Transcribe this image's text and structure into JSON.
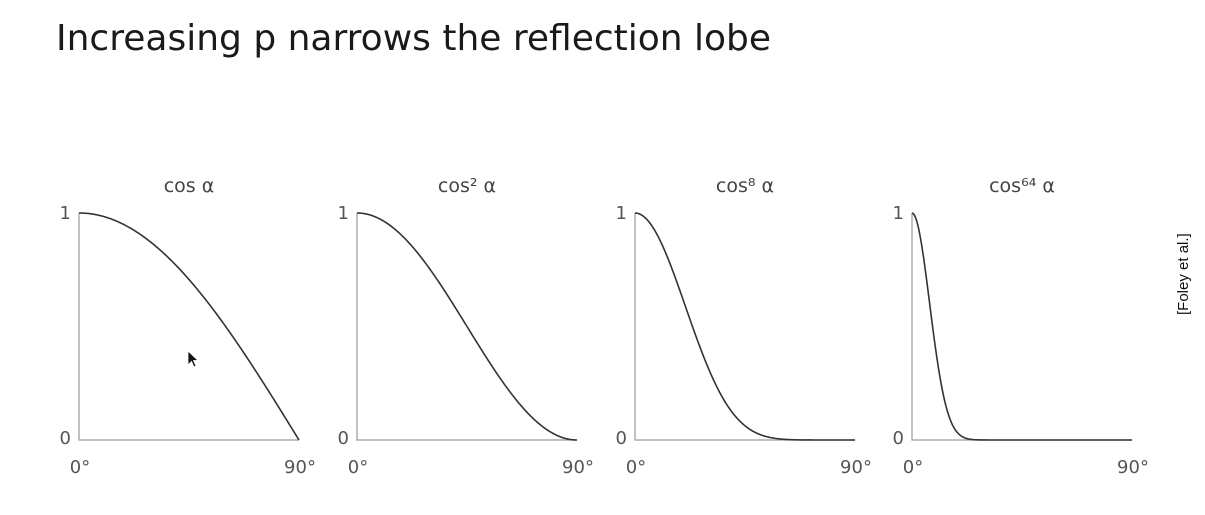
{
  "slide": {
    "title": "Increasing p narrows the reflection lobe",
    "citation": "[Foley et al.]"
  },
  "chart_data": [
    {
      "type": "line",
      "title": "cos α",
      "function": "cos^p(α)",
      "p": 1,
      "x_tick_labels": [
        "0°",
        "90°"
      ],
      "y_tick_labels": [
        "0",
        "1"
      ],
      "xlim": [
        0,
        90
      ],
      "ylim": [
        0,
        1
      ],
      "x": [
        0,
        15,
        30,
        45,
        60,
        75,
        90
      ],
      "y": [
        1.0,
        0.966,
        0.866,
        0.707,
        0.5,
        0.259,
        0.0
      ]
    },
    {
      "type": "line",
      "title": "cos² α",
      "function": "cos^p(α)",
      "p": 2,
      "x_tick_labels": [
        "0°",
        "90°"
      ],
      "y_tick_labels": [
        "0",
        "1"
      ],
      "xlim": [
        0,
        90
      ],
      "ylim": [
        0,
        1
      ],
      "x": [
        0,
        15,
        30,
        45,
        60,
        75,
        90
      ],
      "y": [
        1.0,
        0.933,
        0.75,
        0.5,
        0.25,
        0.067,
        0.0
      ]
    },
    {
      "type": "line",
      "title": "cos⁸ α",
      "function": "cos^p(α)",
      "p": 8,
      "x_tick_labels": [
        "0°",
        "90°"
      ],
      "y_tick_labels": [
        "0",
        "1"
      ],
      "xlim": [
        0,
        90
      ],
      "ylim": [
        0,
        1
      ],
      "x": [
        0,
        15,
        30,
        45,
        60,
        75,
        90
      ],
      "y": [
        1.0,
        0.758,
        0.316,
        0.063,
        0.004,
        0.0,
        0.0
      ]
    },
    {
      "type": "line",
      "title": "cos⁶⁴ α",
      "function": "cos^p(α)",
      "p": 64,
      "x_tick_labels": [
        "0°",
        "90°"
      ],
      "y_tick_labels": [
        "0",
        "1"
      ],
      "xlim": [
        0,
        90
      ],
      "ylim": [
        0,
        1
      ],
      "x": [
        0,
        5,
        10,
        15,
        20,
        30,
        90
      ],
      "y": [
        1.0,
        0.785,
        0.375,
        0.109,
        0.019,
        0.0,
        0.0
      ]
    }
  ]
}
